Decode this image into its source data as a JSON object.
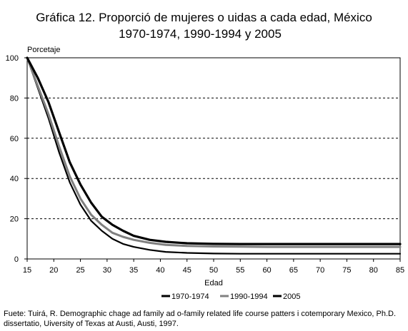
{
  "chart_data": {
    "type": "line",
    "title": "Gráfica 12. Proporció de mujeres o uidas a cada edad, México",
    "subtitle": "1970-1974, 1990-1994 y 2005",
    "ylabel": "Porcetaje",
    "xlabel": "Edad",
    "xlim": [
      15,
      85
    ],
    "ylim": [
      0,
      100
    ],
    "x_ticks": [
      "15",
      "20",
      "25",
      "30",
      "35",
      "40",
      "45",
      "50",
      "55",
      "60",
      "65",
      "70",
      "75",
      "80",
      "85"
    ],
    "y_ticks": [
      "0",
      "20",
      "40",
      "60",
      "80",
      "100"
    ],
    "grid": "horizontal-dashed",
    "legend_position": "bottom",
    "series": [
      {
        "name": "1970-1974",
        "color": "#000000",
        "x": [
          15,
          17,
          19,
          21,
          23,
          25,
          27,
          29,
          31,
          33,
          35,
          38,
          41,
          45,
          50,
          55,
          60,
          70,
          85
        ],
        "y": [
          100,
          85,
          70,
          53,
          38,
          27,
          19,
          14,
          10,
          7.5,
          6,
          4.5,
          3.5,
          3,
          2.7,
          2.6,
          2.6,
          2.6,
          2.6
        ]
      },
      {
        "name": "1990-1994",
        "color": "#808080",
        "x": [
          15,
          17,
          19,
          21,
          23,
          25,
          27,
          29,
          31,
          33,
          35,
          38,
          41,
          45,
          50,
          55,
          60,
          70,
          85
        ],
        "y": [
          100,
          86,
          72,
          56,
          41,
          30,
          22,
          17,
          13,
          11,
          9.5,
          8,
          7,
          6.5,
          6.2,
          6.1,
          6,
          6,
          6
        ]
      },
      {
        "name": "2005",
        "color": "#000000",
        "x": [
          15,
          17,
          19,
          21,
          23,
          25,
          27,
          29,
          31,
          33,
          35,
          38,
          41,
          45,
          50,
          55,
          60,
          70,
          85
        ],
        "y": [
          100,
          90,
          78,
          63,
          48,
          37,
          28,
          21,
          17,
          14,
          11.5,
          9.5,
          8.5,
          7.8,
          7.5,
          7.4,
          7.4,
          7.4,
          7.4
        ]
      }
    ]
  },
  "source": "Fuete: Tuirá, R. Demographic chage ad family ad o-family related life course patters i cotemporary Mexico, Ph.D. dissertatio, Uiversity of Texas at Austi, Austi, 1997."
}
